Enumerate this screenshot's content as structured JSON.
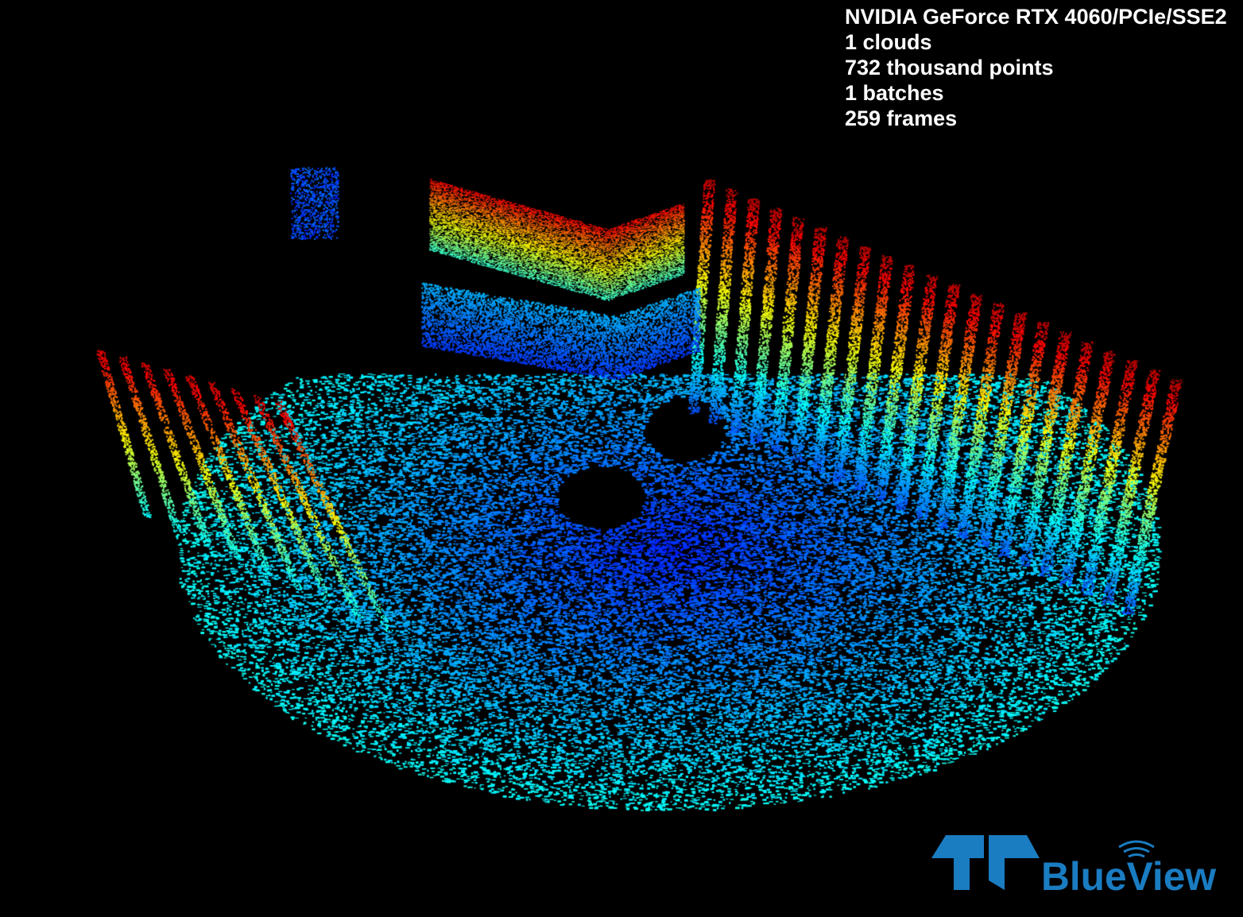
{
  "overlay": {
    "renderer": "NVIDIA GeForce RTX 4060/PCIe/SSE2",
    "clouds": "1 clouds",
    "points": "732 thousand points",
    "batches": "1 batches",
    "frames": "259 frames"
  },
  "logo": {
    "text": "BlueView",
    "color": "#1a7cc1"
  },
  "view": {
    "colormap": "jet",
    "background": "#000000"
  }
}
